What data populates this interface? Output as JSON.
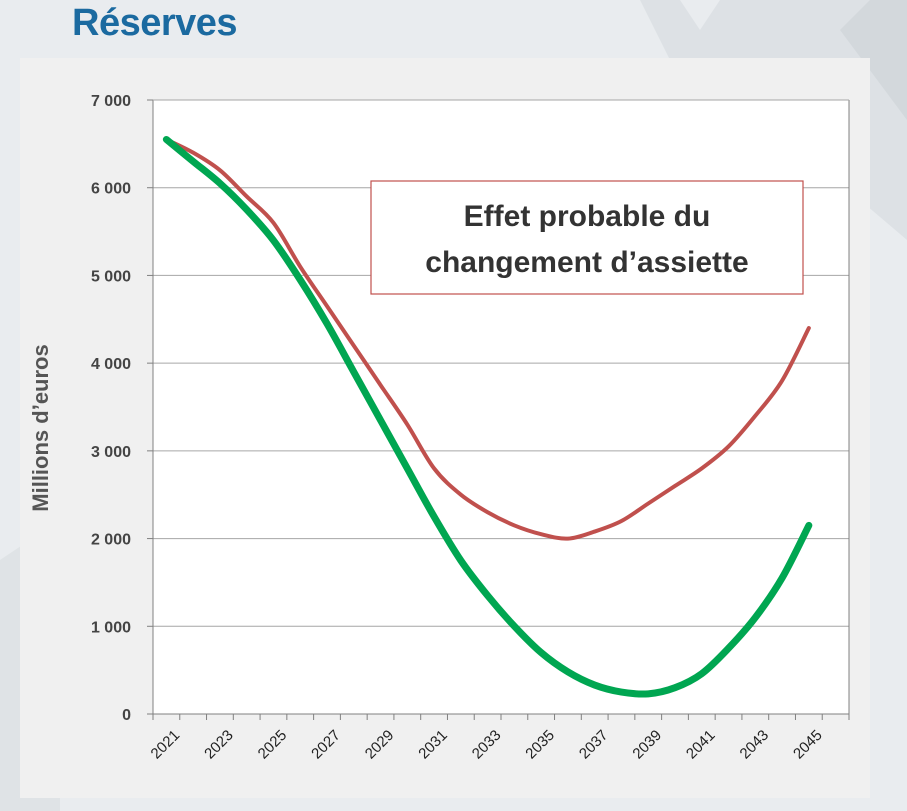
{
  "page": {
    "title": "Réserves"
  },
  "chart_data": {
    "type": "line",
    "title": "",
    "xlabel": "",
    "ylabel": "Millions d’euros",
    "xlim": [
      2021,
      2046
    ],
    "ylim": [
      0,
      7000
    ],
    "grid": true,
    "x": [
      2021,
      2022,
      2023,
      2024,
      2025,
      2026,
      2027,
      2028,
      2029,
      2030,
      2031,
      2032,
      2033,
      2034,
      2035,
      2036,
      2037,
      2038,
      2039,
      2040,
      2041,
      2042,
      2043,
      2044,
      2045,
      2046
    ],
    "x_tick_labels": [
      "2021",
      "2023",
      "2025",
      "2027",
      "2029",
      "2031",
      "2033",
      "2035",
      "2037",
      "2039",
      "2041",
      "2043",
      "2045"
    ],
    "y_tick_labels": [
      "0",
      "1 000",
      "2 000",
      "3 000",
      "4 000",
      "5 000",
      "6 000",
      "7 000"
    ],
    "series": [
      {
        "color": "#c0504d",
        "values": [
          6550,
          6400,
          6200,
          5900,
          5600,
          5100,
          4650,
          4200,
          3750,
          3300,
          2800,
          2500,
          2300,
          2150,
          2050,
          2000,
          2080,
          2200,
          2400,
          2600,
          2800,
          3050,
          3400,
          3800,
          4400,
          null
        ]
      },
      {
        "color": "#00a651",
        "values": [
          6550,
          6300,
          6050,
          5750,
          5400,
          4950,
          4450,
          3900,
          3350,
          2800,
          2250,
          1750,
          1350,
          1000,
          700,
          480,
          330,
          250,
          230,
          300,
          460,
          750,
          1100,
          1550,
          2150,
          null
        ]
      }
    ],
    "annotations": [
      {
        "lines": [
          "Effet probable du",
          "changement d’assiette"
        ]
      }
    ]
  }
}
